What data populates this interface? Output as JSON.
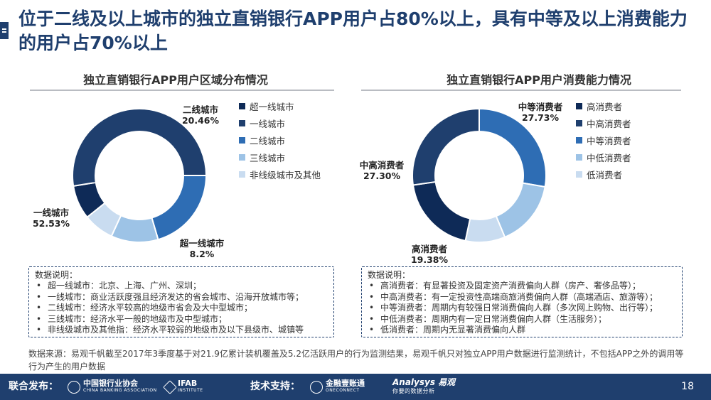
{
  "title": "位于二线及以上城市的独立直销银行APP用户占80%以上，具有中等及以上消费能力的用户占70%以上",
  "colors": {
    "navy": "#1f3f6e",
    "c1": "#0e2a57",
    "c2": "#1f3f6e",
    "c3": "#2e6db4",
    "c4": "#9dc3e6",
    "c5": "#c9dcf0"
  },
  "chart_data": [
    {
      "type": "pie",
      "title": "独立直销银行APP用户区域分布情况",
      "categories": [
        "超一线城市",
        "一线城市",
        "二线城市",
        "三线城市",
        "非线级城市及其他"
      ],
      "values": [
        8.2,
        52.53,
        20.46,
        11.4,
        7.41
      ],
      "value_labels": [
        "8.2%",
        "52.53%",
        "20.46%",
        "",
        ""
      ],
      "legend": "right"
    },
    {
      "type": "pie",
      "title": "独立直销银行APP用户消费能力情况",
      "categories": [
        "高消费者",
        "中高消费者",
        "中等消费者",
        "中低消费者",
        "低消费者"
      ],
      "values": [
        19.38,
        27.3,
        27.73,
        16.0,
        9.59
      ],
      "value_labels": [
        "19.38%",
        "27.30%",
        "27.73%",
        "",
        ""
      ],
      "legend": "right"
    }
  ],
  "notes_left": {
    "heading": "数据说明：",
    "items": [
      "超一线城市：北京、上海、广州、深圳；",
      "一线城市：商业活跃度强且经济发达的省会城市、沿海开放城市等；",
      "二线城市：经济水平较高的地级市省会及大中型城市；",
      "三线城市：经济水平一般的地级市及中型城市；",
      "非线级城市及其他指：经济水平较弱的地级市及以下县级市、城镇等"
    ]
  },
  "notes_right": {
    "heading": "数据说明：",
    "items": [
      "高消费者：有显著投资及固定资产消费偏向人群（房产、奢侈品等）；",
      "中高消费者：有一定投资性高端商旅消费偏向人群（高端酒店、旅游等）；",
      "中等消费者：周期内有较强日常消费偏向人群（多次网上购物、出行等）；",
      "中低消费者：周期内有一定日常消费偏向人群（生活服务）；",
      "低消费者：周期内无显著消费偏向人群"
    ]
  },
  "source": "数据来源：易观千帆截至2017年3季度基于对21.9亿累计装机覆盖及5.2亿活跃用户的行为监测结果，易观千帆只对独立APP用户数据进行监测统计，不包括APP之外的调用等行为产生的用户数据",
  "footer": {
    "joint_label": "联合发布：",
    "org1": "中国银行业协会",
    "org1_en": "CHINA BANKING ASSOCIATION",
    "org2": "IFAB",
    "org2_en": "INSTITUTE",
    "tech_label": "技术支持：",
    "org3": "金融壹账通",
    "org3_en": "ONECONNECT",
    "org4": "Analysys 易观",
    "org4_en": "你要的数据分析",
    "page": "18"
  }
}
